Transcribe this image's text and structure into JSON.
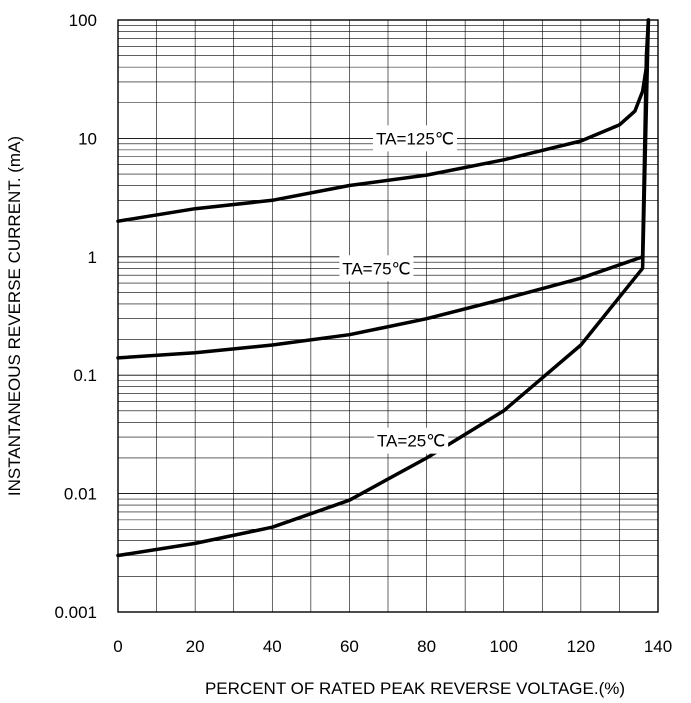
{
  "chart_data": {
    "type": "line",
    "title": "",
    "xlabel": "PERCENT OF RATED PEAK REVERSE VOLTAGE.(%)",
    "ylabel": "INSTANTANEOUS REVERSE CURRENT. (mA)",
    "xlim": [
      0,
      140
    ],
    "ylim": [
      0.001,
      100
    ],
    "yscale": "log",
    "grid": true,
    "x_ticks": [
      "0",
      "20",
      "40",
      "60",
      "80",
      "100",
      "120",
      "140"
    ],
    "y_ticks": [
      "0.001",
      "0.01",
      "0.1",
      "1",
      "10",
      "100"
    ],
    "series": [
      {
        "name": "TA=125℃",
        "points": [
          [
            0,
            2.0
          ],
          [
            20,
            2.55
          ],
          [
            40,
            3.0
          ],
          [
            60,
            4.0
          ],
          [
            80,
            4.9
          ],
          [
            100,
            6.6
          ],
          [
            120,
            9.5
          ],
          [
            130,
            13.0
          ],
          [
            134,
            17.0
          ],
          [
            136,
            25.0
          ],
          [
            137,
            40.0
          ],
          [
            137.5,
            100.0
          ]
        ]
      },
      {
        "name": "TA=75℃",
        "points": [
          [
            0,
            0.14
          ],
          [
            20,
            0.155
          ],
          [
            40,
            0.18
          ],
          [
            60,
            0.22
          ],
          [
            80,
            0.3
          ],
          [
            100,
            0.44
          ],
          [
            120,
            0.66
          ],
          [
            136,
            1.0
          ],
          [
            137,
            50.0
          ],
          [
            137.5,
            100.0
          ]
        ]
      },
      {
        "name": "TA=25℃",
        "points": [
          [
            0,
            0.003
          ],
          [
            20,
            0.0038
          ],
          [
            40,
            0.0052
          ],
          [
            60,
            0.0088
          ],
          [
            80,
            0.02
          ],
          [
            100,
            0.05
          ],
          [
            120,
            0.18
          ],
          [
            136,
            0.8
          ],
          [
            137.5,
            100.0
          ]
        ]
      }
    ],
    "annotations": [
      {
        "text": "TA=125℃",
        "x": 77,
        "y": 10
      },
      {
        "text": "TA=75℃",
        "x": 67,
        "y": 0.8
      },
      {
        "text": "TA=25℃",
        "x": 76,
        "y": 0.028
      }
    ]
  }
}
